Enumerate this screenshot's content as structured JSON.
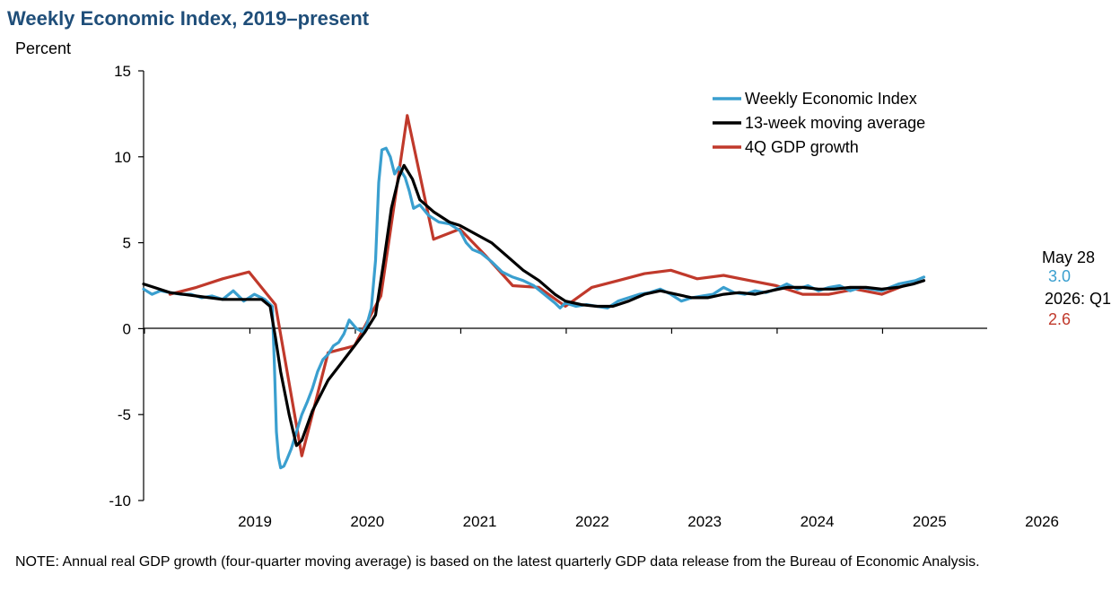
{
  "title": "Weekly Economic Index, 2019–present",
  "chart_data": {
    "type": "line",
    "title": "Weekly Economic Index, 2019–present",
    "ylabel": "Percent",
    "xlabel": "",
    "ylim": [
      -10,
      15
    ],
    "yticks": [
      15,
      10,
      5,
      0,
      -5,
      -10
    ],
    "xlim": [
      2018.0,
      2026.0
    ],
    "xticks": [
      "2019",
      "2020",
      "2021",
      "2022",
      "2023",
      "2024",
      "2025",
      "2026"
    ],
    "legend_position": "top-right",
    "grid": false,
    "series": [
      {
        "name": "Weekly Economic Index",
        "color": "#3a9fcf",
        "points": [
          [
            2018.0,
            2.3
          ],
          [
            2018.08,
            2.0
          ],
          [
            2018.16,
            2.2
          ],
          [
            2018.25,
            2.1
          ],
          [
            2018.35,
            2.0
          ],
          [
            2018.45,
            2.0
          ],
          [
            2018.55,
            1.8
          ],
          [
            2018.65,
            1.9
          ],
          [
            2018.75,
            1.7
          ],
          [
            2018.85,
            2.2
          ],
          [
            2018.95,
            1.6
          ],
          [
            2019.05,
            2.0
          ],
          [
            2019.15,
            1.7
          ],
          [
            2019.22,
            1.3
          ],
          [
            2019.24,
            -2.0
          ],
          [
            2019.26,
            -6.0
          ],
          [
            2019.28,
            -7.5
          ],
          [
            2019.3,
            -8.1
          ],
          [
            2019.33,
            -8.0
          ],
          [
            2019.36,
            -7.6
          ],
          [
            2019.4,
            -7.0
          ],
          [
            2019.45,
            -6.0
          ],
          [
            2019.5,
            -5.0
          ],
          [
            2019.55,
            -4.3
          ],
          [
            2019.6,
            -3.5
          ],
          [
            2019.65,
            -2.5
          ],
          [
            2019.7,
            -1.8
          ],
          [
            2019.75,
            -1.5
          ],
          [
            2019.8,
            -1.0
          ],
          [
            2019.85,
            -0.8
          ],
          [
            2019.9,
            -0.3
          ],
          [
            2019.95,
            0.5
          ],
          [
            2020.02,
            0.0
          ],
          [
            2020.08,
            -0.2
          ],
          [
            2020.12,
            0.3
          ],
          [
            2020.16,
            1.2
          ],
          [
            2020.2,
            4.0
          ],
          [
            2020.23,
            8.5
          ],
          [
            2020.26,
            10.4
          ],
          [
            2020.3,
            10.5
          ],
          [
            2020.34,
            10.0
          ],
          [
            2020.38,
            9.0
          ],
          [
            2020.42,
            9.4
          ],
          [
            2020.48,
            8.8
          ],
          [
            2020.52,
            8.0
          ],
          [
            2020.56,
            7.0
          ],
          [
            2020.62,
            7.2
          ],
          [
            2020.7,
            6.6
          ],
          [
            2020.8,
            6.2
          ],
          [
            2020.9,
            6.1
          ],
          [
            2021.0,
            5.7
          ],
          [
            2021.06,
            5.0
          ],
          [
            2021.12,
            4.6
          ],
          [
            2021.2,
            4.4
          ],
          [
            2021.3,
            3.9
          ],
          [
            2021.4,
            3.3
          ],
          [
            2021.5,
            3.0
          ],
          [
            2021.6,
            2.8
          ],
          [
            2021.7,
            2.5
          ],
          [
            2021.8,
            2.0
          ],
          [
            2021.9,
            1.5
          ],
          [
            2021.95,
            1.2
          ],
          [
            2022.0,
            1.5
          ],
          [
            2022.1,
            1.3
          ],
          [
            2022.2,
            1.4
          ],
          [
            2022.3,
            1.3
          ],
          [
            2022.4,
            1.2
          ],
          [
            2022.5,
            1.6
          ],
          [
            2022.6,
            1.8
          ],
          [
            2022.7,
            2.0
          ],
          [
            2022.8,
            2.1
          ],
          [
            2022.9,
            2.3
          ],
          [
            2023.0,
            2.0
          ],
          [
            2023.1,
            1.6
          ],
          [
            2023.2,
            1.8
          ],
          [
            2023.3,
            1.9
          ],
          [
            2023.4,
            2.0
          ],
          [
            2023.5,
            2.4
          ],
          [
            2023.6,
            2.1
          ],
          [
            2023.7,
            2.0
          ],
          [
            2023.8,
            2.2
          ],
          [
            2023.9,
            2.1
          ],
          [
            2024.0,
            2.3
          ],
          [
            2024.1,
            2.6
          ],
          [
            2024.2,
            2.3
          ],
          [
            2024.3,
            2.5
          ],
          [
            2024.4,
            2.2
          ],
          [
            2024.5,
            2.4
          ],
          [
            2024.6,
            2.5
          ],
          [
            2024.7,
            2.2
          ],
          [
            2024.8,
            2.4
          ],
          [
            2024.9,
            2.3
          ],
          [
            2025.0,
            2.2
          ],
          [
            2025.08,
            2.4
          ],
          [
            2025.16,
            2.6
          ],
          [
            2025.24,
            2.7
          ],
          [
            2025.32,
            2.8
          ],
          [
            2025.4,
            3.0
          ]
        ]
      },
      {
        "name": "13-week moving average",
        "color": "#000000",
        "points": [
          [
            2018.0,
            2.6
          ],
          [
            2018.1,
            2.4
          ],
          [
            2018.25,
            2.1
          ],
          [
            2018.5,
            1.9
          ],
          [
            2018.75,
            1.7
          ],
          [
            2019.0,
            1.7
          ],
          [
            2019.12,
            1.7
          ],
          [
            2019.2,
            1.3
          ],
          [
            2019.25,
            -0.5
          ],
          [
            2019.3,
            -2.5
          ],
          [
            2019.38,
            -5.0
          ],
          [
            2019.45,
            -6.8
          ],
          [
            2019.5,
            -6.5
          ],
          [
            2019.6,
            -4.8
          ],
          [
            2019.75,
            -3.0
          ],
          [
            2019.9,
            -1.8
          ],
          [
            2020.0,
            -1.0
          ],
          [
            2020.1,
            -0.2
          ],
          [
            2020.2,
            0.8
          ],
          [
            2020.28,
            4.0
          ],
          [
            2020.35,
            7.0
          ],
          [
            2020.42,
            8.8
          ],
          [
            2020.47,
            9.5
          ],
          [
            2020.55,
            8.7
          ],
          [
            2020.62,
            7.5
          ],
          [
            2020.75,
            6.8
          ],
          [
            2020.9,
            6.2
          ],
          [
            2021.0,
            6.0
          ],
          [
            2021.15,
            5.5
          ],
          [
            2021.3,
            5.0
          ],
          [
            2021.45,
            4.2
          ],
          [
            2021.6,
            3.4
          ],
          [
            2021.75,
            2.8
          ],
          [
            2021.9,
            2.0
          ],
          [
            2022.0,
            1.6
          ],
          [
            2022.15,
            1.4
          ],
          [
            2022.3,
            1.3
          ],
          [
            2022.45,
            1.3
          ],
          [
            2022.6,
            1.6
          ],
          [
            2022.75,
            2.0
          ],
          [
            2022.9,
            2.2
          ],
          [
            2023.05,
            2.0
          ],
          [
            2023.2,
            1.8
          ],
          [
            2023.35,
            1.8
          ],
          [
            2023.5,
            2.0
          ],
          [
            2023.65,
            2.1
          ],
          [
            2023.8,
            2.0
          ],
          [
            2023.95,
            2.2
          ],
          [
            2024.1,
            2.4
          ],
          [
            2024.25,
            2.4
          ],
          [
            2024.4,
            2.3
          ],
          [
            2024.55,
            2.3
          ],
          [
            2024.7,
            2.4
          ],
          [
            2024.85,
            2.4
          ],
          [
            2025.0,
            2.3
          ],
          [
            2025.15,
            2.4
          ],
          [
            2025.3,
            2.6
          ],
          [
            2025.4,
            2.8
          ]
        ]
      },
      {
        "name": "4Q GDP growth",
        "color": "#c0392b",
        "points": [
          [
            2018.25,
            2.0
          ],
          [
            2018.5,
            2.4
          ],
          [
            2018.75,
            2.9
          ],
          [
            2019.0,
            3.3
          ],
          [
            2019.25,
            1.4
          ],
          [
            2019.5,
            -7.4
          ],
          [
            2019.75,
            -1.4
          ],
          [
            2020.0,
            -1.0
          ],
          [
            2020.25,
            1.9
          ],
          [
            2020.5,
            12.4
          ],
          [
            2020.75,
            5.2
          ],
          [
            2021.0,
            5.8
          ],
          [
            2021.25,
            4.2
          ],
          [
            2021.5,
            2.5
          ],
          [
            2021.75,
            2.4
          ],
          [
            2022.0,
            1.3
          ],
          [
            2022.25,
            2.4
          ],
          [
            2022.5,
            2.8
          ],
          [
            2022.75,
            3.2
          ],
          [
            2023.0,
            3.4
          ],
          [
            2023.25,
            2.9
          ],
          [
            2023.5,
            3.1
          ],
          [
            2023.75,
            2.8
          ],
          [
            2024.0,
            2.5
          ],
          [
            2024.25,
            2.0
          ],
          [
            2024.5,
            2.0
          ],
          [
            2024.75,
            2.3
          ],
          [
            2025.0,
            2.0
          ],
          [
            2025.25,
            2.6
          ]
        ]
      }
    ],
    "annotations": {
      "latest_date_label": "May 28",
      "latest_wei_value": "3.0",
      "latest_gdp_label": "2026: Q1",
      "latest_gdp_value": "2.6"
    }
  },
  "note": "NOTE: Annual real GDP growth (four-quarter moving average) is based on the latest quarterly GDP data release from the Bureau of Economic Analysis."
}
